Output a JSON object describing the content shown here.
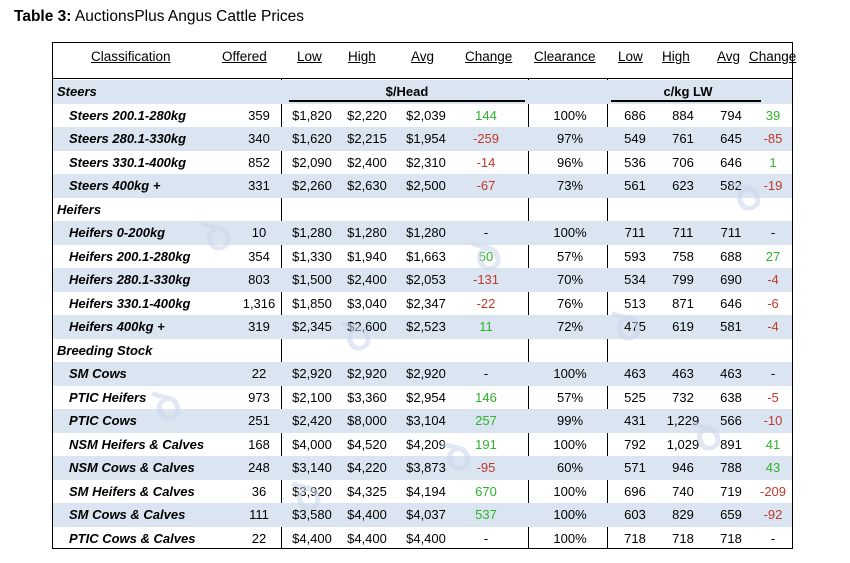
{
  "caption": {
    "prefix": "Table 3:",
    "title": "AuctionsPlus Angus Cattle Prices"
  },
  "headers": {
    "classification": "Classification",
    "offered": "Offered",
    "low": "Low",
    "high": "High",
    "avg": "Avg",
    "change": "Change",
    "clearance": "Clearance",
    "low2": "Low",
    "high2": "High",
    "avg2": "Avg",
    "change2": "Change"
  },
  "units": {
    "head": "$/Head",
    "lw": "c/kg LW"
  },
  "rows": [
    {
      "type": "group",
      "label": "Steers"
    },
    {
      "label": "Steers 200.1-280kg",
      "offered": "359",
      "low": "$1,820",
      "high": "$2,220",
      "avg": "$2,039",
      "change": "144",
      "change_sign": "pos",
      "clearance": "100%",
      "low2": "686",
      "high2": "884",
      "avg2": "794",
      "change2": "39",
      "change2_sign": "pos"
    },
    {
      "label": "Steers 280.1-330kg",
      "offered": "340",
      "low": "$1,620",
      "high": "$2,215",
      "avg": "$1,954",
      "change": "-259",
      "change_sign": "neg",
      "clearance": "97%",
      "low2": "549",
      "high2": "761",
      "avg2": "645",
      "change2": "-85",
      "change2_sign": "neg"
    },
    {
      "label": "Steers 330.1-400kg",
      "offered": "852",
      "low": "$2,090",
      "high": "$2,400",
      "avg": "$2,310",
      "change": "-14",
      "change_sign": "neg",
      "clearance": "96%",
      "low2": "536",
      "high2": "706",
      "avg2": "646",
      "change2": "1",
      "change2_sign": "pos"
    },
    {
      "label": "Steers 400kg +",
      "offered": "331",
      "low": "$2,260",
      "high": "$2,630",
      "avg": "$2,500",
      "change": "-67",
      "change_sign": "neg",
      "clearance": "73%",
      "low2": "561",
      "high2": "623",
      "avg2": "582",
      "change2": "-19",
      "change2_sign": "neg"
    },
    {
      "type": "group",
      "label": "Heifers"
    },
    {
      "label": "Heifers 0-200kg",
      "offered": "10",
      "low": "$1,280",
      "high": "$1,280",
      "avg": "$1,280",
      "change": "-",
      "change_sign": "none",
      "clearance": "100%",
      "low2": "711",
      "high2": "711",
      "avg2": "711",
      "change2": "-",
      "change2_sign": "none"
    },
    {
      "label": "Heifers 200.1-280kg",
      "offered": "354",
      "low": "$1,330",
      "high": "$1,940",
      "avg": "$1,663",
      "change": "50",
      "change_sign": "pos",
      "clearance": "57%",
      "low2": "593",
      "high2": "758",
      "avg2": "688",
      "change2": "27",
      "change2_sign": "pos"
    },
    {
      "label": "Heifers 280.1-330kg",
      "offered": "803",
      "low": "$1,500",
      "high": "$2,400",
      "avg": "$2,053",
      "change": "-131",
      "change_sign": "neg",
      "clearance": "70%",
      "low2": "534",
      "high2": "799",
      "avg2": "690",
      "change2": "-4",
      "change2_sign": "neg"
    },
    {
      "label": "Heifers 330.1-400kg",
      "offered": "1,316",
      "low": "$1,850",
      "high": "$3,040",
      "avg": "$2,347",
      "change": "-22",
      "change_sign": "neg",
      "clearance": "76%",
      "low2": "513",
      "high2": "871",
      "avg2": "646",
      "change2": "-6",
      "change2_sign": "neg"
    },
    {
      "label": "Heifers 400kg +",
      "offered": "319",
      "low": "$2,345",
      "high": "$2,600",
      "avg": "$2,523",
      "change": "11",
      "change_sign": "pos",
      "clearance": "72%",
      "low2": "475",
      "high2": "619",
      "avg2": "581",
      "change2": "-4",
      "change2_sign": "neg"
    },
    {
      "type": "group",
      "label": "Breeding Stock"
    },
    {
      "label": "SM Cows",
      "offered": "22",
      "low": "$2,920",
      "high": "$2,920",
      "avg": "$2,920",
      "change": "-",
      "change_sign": "none",
      "clearance": "100%",
      "low2": "463",
      "high2": "463",
      "avg2": "463",
      "change2": "-",
      "change2_sign": "none"
    },
    {
      "label": "PTIC Heifers",
      "offered": "973",
      "low": "$2,100",
      "high": "$3,360",
      "avg": "$2,954",
      "change": "146",
      "change_sign": "pos",
      "clearance": "57%",
      "low2": "525",
      "high2": "732",
      "avg2": "638",
      "change2": "-5",
      "change2_sign": "neg"
    },
    {
      "label": "PTIC Cows",
      "offered": "251",
      "low": "$2,420",
      "high": "$8,000",
      "avg": "$3,104",
      "change": "257",
      "change_sign": "pos",
      "clearance": "99%",
      "low2": "431",
      "high2": "1,229",
      "avg2": "566",
      "change2": "-10",
      "change2_sign": "neg"
    },
    {
      "label": "NSM Heifers & Calves",
      "offered": "168",
      "low": "$4,000",
      "high": "$4,520",
      "avg": "$4,209",
      "change": "191",
      "change_sign": "pos",
      "clearance": "100%",
      "low2": "792",
      "high2": "1,029",
      "avg2": "891",
      "change2": "41",
      "change2_sign": "pos"
    },
    {
      "label": "NSM Cows & Calves",
      "offered": "248",
      "low": "$3,140",
      "high": "$4,220",
      "avg": "$3,873",
      "change": "-95",
      "change_sign": "neg",
      "clearance": "60%",
      "low2": "571",
      "high2": "946",
      "avg2": "788",
      "change2": "43",
      "change2_sign": "pos"
    },
    {
      "label": "SM Heifers & Calves",
      "offered": "36",
      "low": "$3,920",
      "high": "$4,325",
      "avg": "$4,194",
      "change": "670",
      "change_sign": "pos",
      "clearance": "100%",
      "low2": "696",
      "high2": "740",
      "avg2": "719",
      "change2": "-209",
      "change2_sign": "neg"
    },
    {
      "label": "SM Cows & Calves",
      "offered": "111",
      "low": "$3,580",
      "high": "$4,400",
      "avg": "$4,037",
      "change": "537",
      "change_sign": "pos",
      "clearance": "100%",
      "low2": "603",
      "high2": "829",
      "avg2": "659",
      "change2": "-92",
      "change2_sign": "neg"
    },
    {
      "label": "PTIC Cows & Calves",
      "offered": "22",
      "low": "$4,400",
      "high": "$4,400",
      "avg": "$4,400",
      "change": "-",
      "change_sign": "none",
      "clearance": "100%",
      "low2": "718",
      "high2": "718",
      "avg2": "718",
      "change2": "-",
      "change2_sign": "none"
    }
  ]
}
